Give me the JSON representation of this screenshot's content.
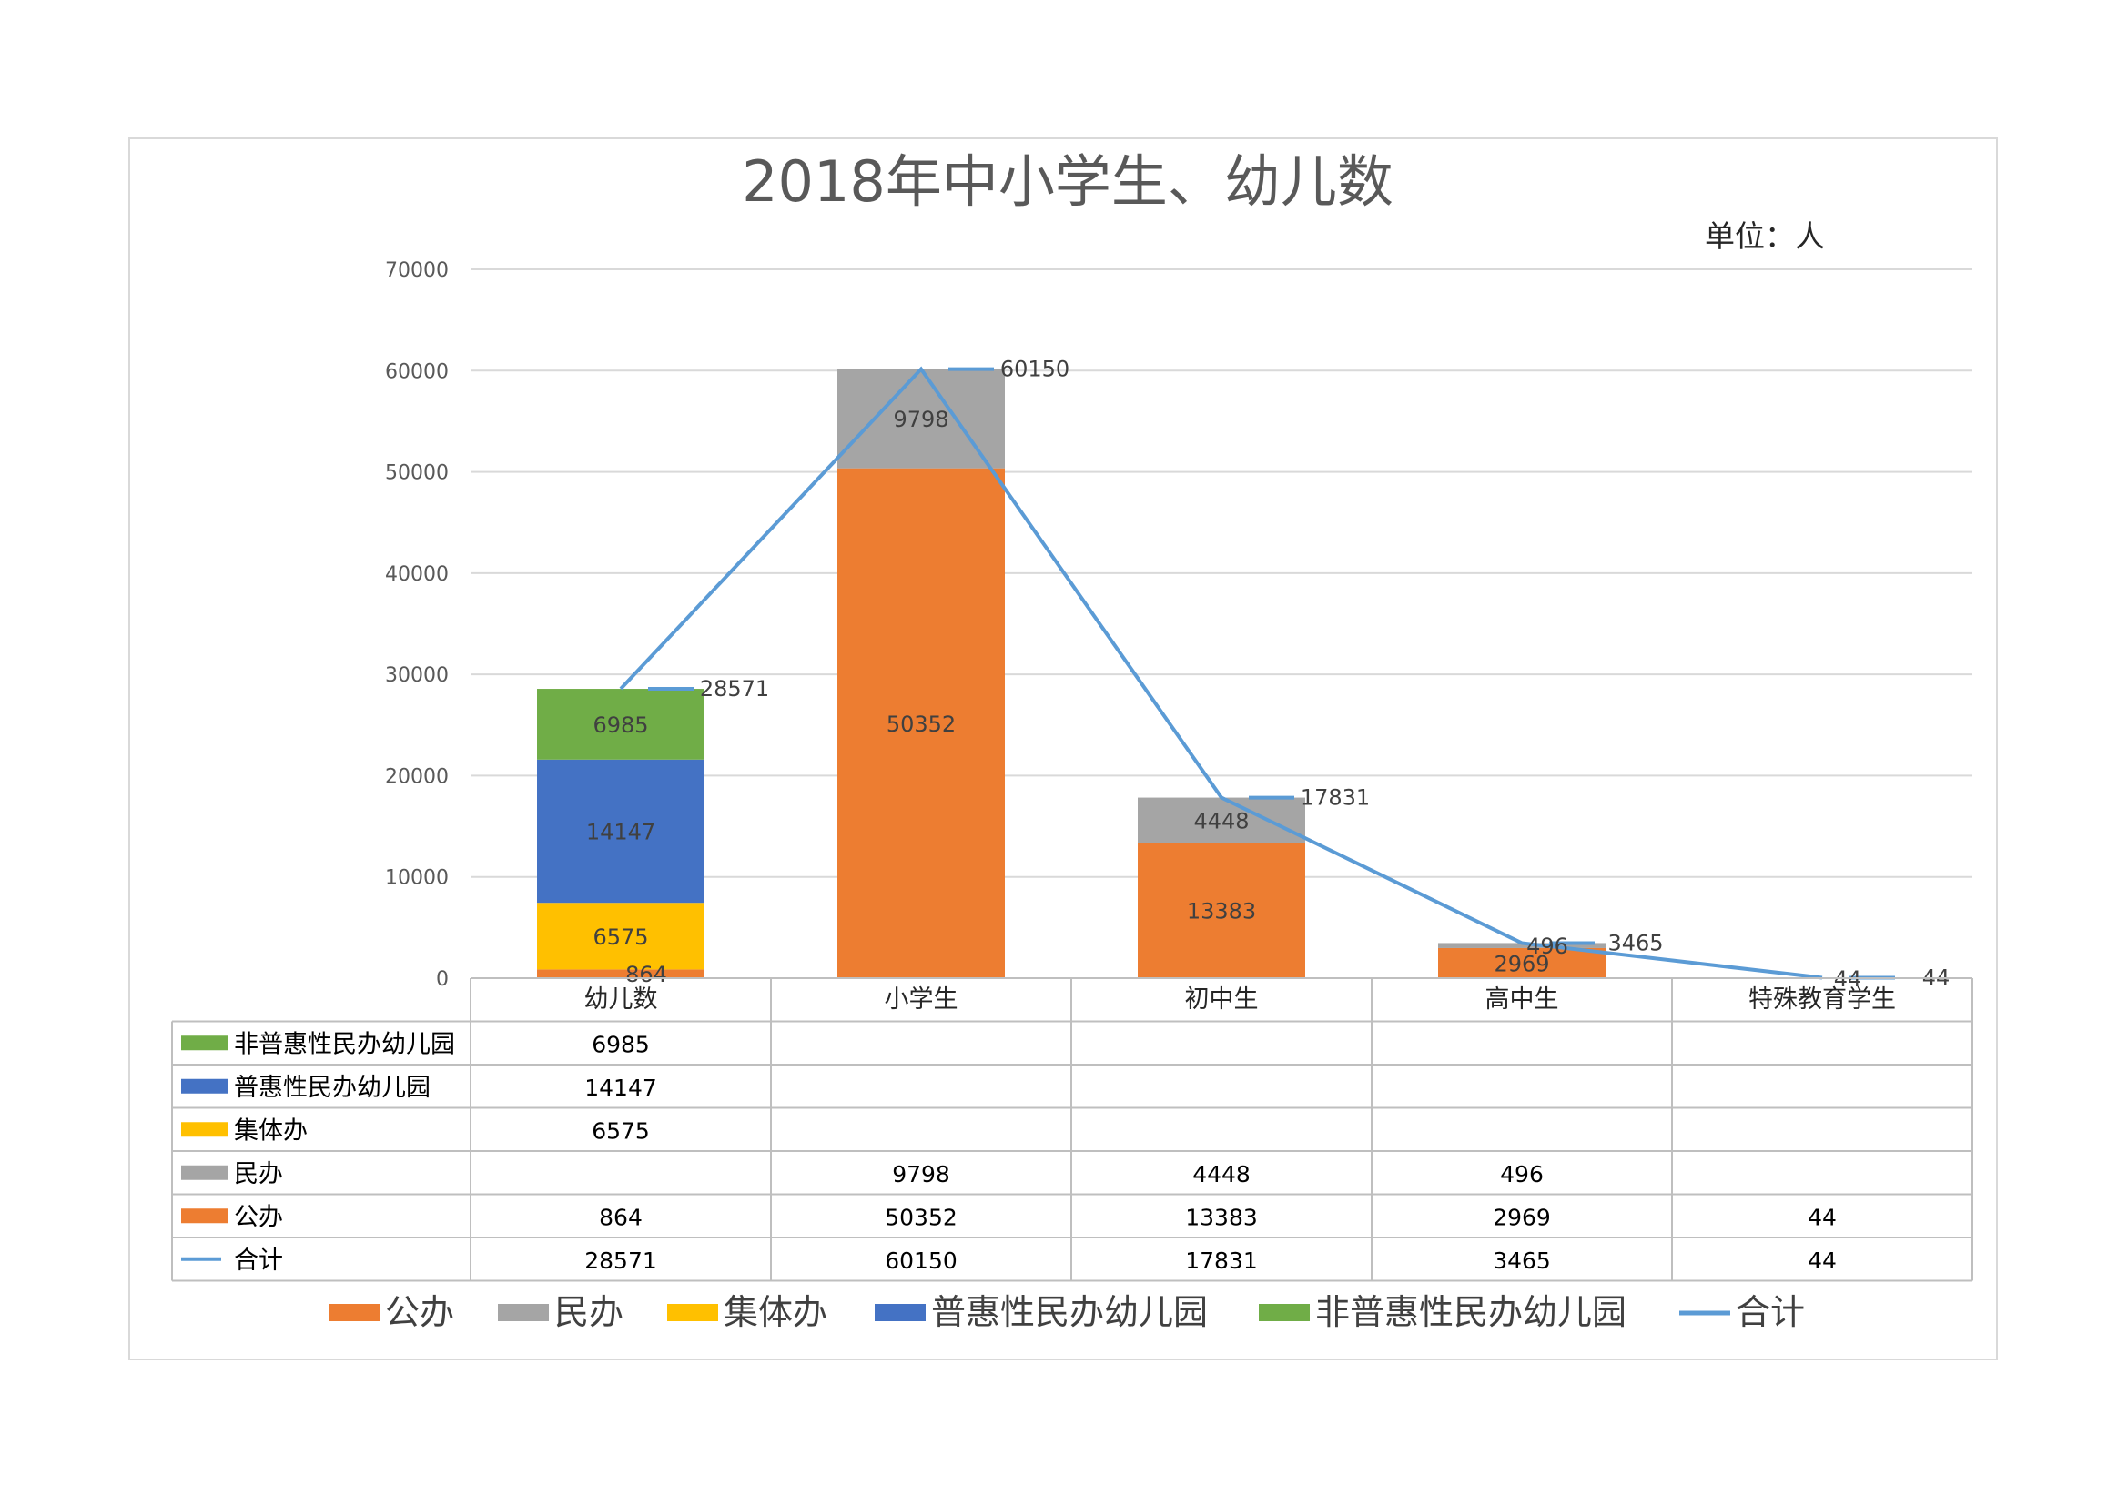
{
  "chart_data": {
    "type": "bar",
    "title": "2018年中小学生、幼儿数",
    "unit_label": "单位：人",
    "categories": [
      "幼儿数",
      "小学生",
      "初中生",
      "高中生",
      "特殊教育学生"
    ],
    "ylim": [
      0,
      70000
    ],
    "yticks": [
      0,
      10000,
      20000,
      30000,
      40000,
      50000,
      60000,
      70000
    ],
    "grid": true,
    "legend_placement": "bottom",
    "series": [
      {
        "name": "公办",
        "kind": "bar",
        "color": "#ED7D31",
        "values": [
          864,
          50352,
          13383,
          2969,
          44
        ]
      },
      {
        "name": "民办",
        "kind": "bar",
        "color": "#A5A5A5",
        "values": [
          null,
          9798,
          4448,
          496,
          null
        ]
      },
      {
        "name": "集体办",
        "kind": "bar",
        "color": "#FFC000",
        "values": [
          6575,
          null,
          null,
          null,
          null
        ]
      },
      {
        "name": "普惠性民办幼儿园",
        "kind": "bar",
        "color": "#4472C4",
        "values": [
          14147,
          null,
          null,
          null,
          null
        ]
      },
      {
        "name": "非普惠性民办幼儿园",
        "kind": "bar",
        "color": "#70AD47",
        "values": [
          6985,
          null,
          null,
          null,
          null
        ]
      },
      {
        "name": "合计",
        "kind": "line",
        "color": "#5B9BD5",
        "values": [
          28571,
          60150,
          17831,
          3465,
          44
        ]
      }
    ],
    "table_order": [
      "非普惠性民办幼儿园",
      "普惠性民办幼儿园",
      "集体办",
      "民办",
      "公办",
      "合计"
    ]
  }
}
